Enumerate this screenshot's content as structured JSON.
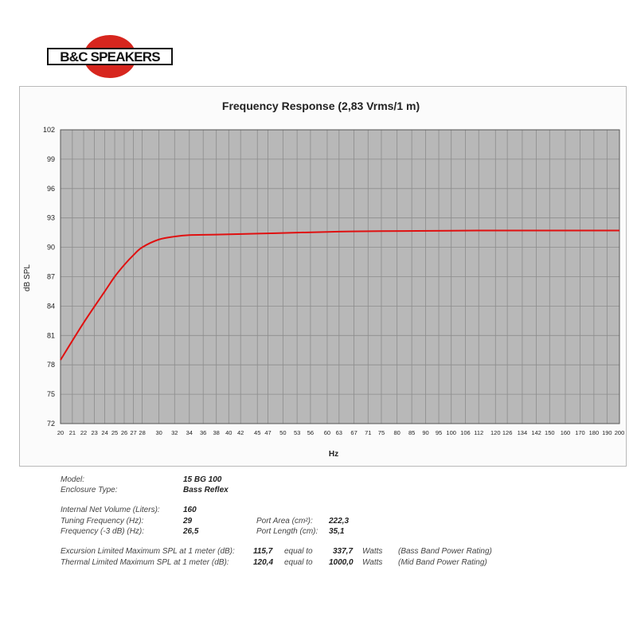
{
  "logo": {
    "text": "B&C SPEAKERS",
    "colors": {
      "red": "#d7261e",
      "black": "#111111"
    }
  },
  "chart_data": {
    "type": "line",
    "title": "Frequency Response (2,83 Vrms/1 m)",
    "xlabel": "Hz",
    "ylabel": "dB SPL",
    "x_ticks": [
      20,
      21,
      22,
      23,
      24,
      25,
      26,
      27,
      28,
      30,
      32,
      34,
      36,
      38,
      40,
      42,
      45,
      47,
      50,
      53,
      56,
      60,
      63,
      67,
      71,
      75,
      80,
      85,
      90,
      95,
      100,
      106,
      112,
      120,
      126,
      134,
      142,
      150,
      160,
      170,
      180,
      190,
      200
    ],
    "y_ticks": [
      72,
      75,
      78,
      81,
      84,
      87,
      90,
      93,
      96,
      99,
      102
    ],
    "ylim": [
      72,
      102
    ],
    "xlim": [
      20,
      200
    ],
    "x_scale": "log",
    "grid": true,
    "plot_background": "#b8b8b8",
    "grid_color": "#8c8c8c",
    "series": [
      {
        "color": "#e01010",
        "x": [
          20,
          22,
          24,
          25,
          26,
          27,
          28,
          30,
          32,
          34,
          38,
          45,
          53,
          63,
          75,
          100,
          120,
          150,
          200
        ],
        "y": [
          78.5,
          82.3,
          85.5,
          87.0,
          88.2,
          89.2,
          90.0,
          90.8,
          91.1,
          91.25,
          91.3,
          91.4,
          91.5,
          91.6,
          91.65,
          91.7,
          91.72,
          91.72,
          91.72
        ]
      }
    ]
  },
  "specs": {
    "model_label": "Model:",
    "model_value": "15 BG 100",
    "enclosure_label": "Enclosure Type:",
    "enclosure_value": "Bass Reflex",
    "volume_label": "Internal Net Volume (Liters):",
    "volume_value": "160",
    "tuning_label": "Tuning Frequency (Hz):",
    "tuning_value": "29",
    "f3_label": "Frequency (-3 dB) (Hz):",
    "f3_value": "26,5",
    "port_area_label": "Port Area (cm²):",
    "port_area_value": "222,3",
    "port_length_label": "Port Length (cm):",
    "port_length_value": "35,1",
    "excursion_label": "Excursion Limited Maximum SPL at 1 meter (dB):",
    "excursion_value": "115,7",
    "excursion_equal": "equal to",
    "excursion_watts": "337,7",
    "excursion_unit": "Watts",
    "excursion_note": "(Bass Band Power Rating)",
    "thermal_label": "Thermal Limited Maximum SPL at 1 meter (dB):",
    "thermal_value": "120,4",
    "thermal_equal": "equal to",
    "thermal_watts": "1000,0",
    "thermal_unit": "Watts",
    "thermal_note": "(Mid Band Power Rating)"
  }
}
